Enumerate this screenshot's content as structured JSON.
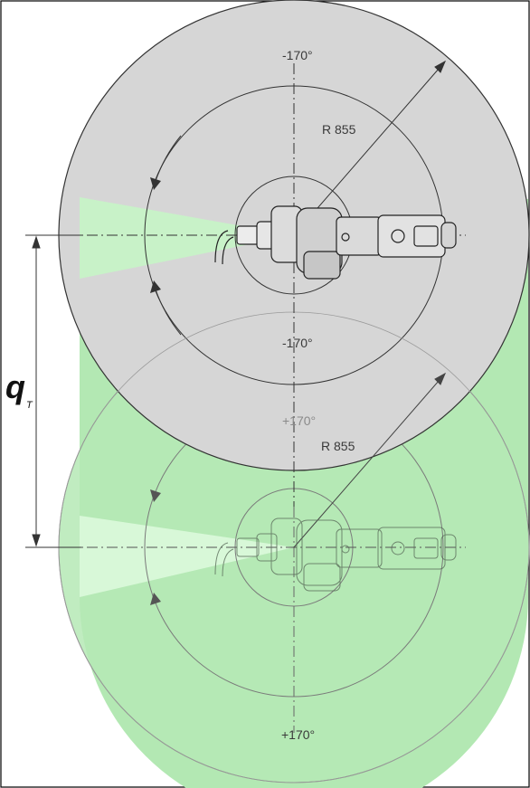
{
  "top_envelope": {
    "angle_top_label": "-170°",
    "radius_label": "R 855",
    "angle_bottom_label": "-170°"
  },
  "bottom_envelope": {
    "angle_top_label": "+170°",
    "radius_label": "R 855",
    "angle_bottom_label": "+170°"
  },
  "travel_dimension": {
    "symbol": "q",
    "subscript": "T"
  },
  "colors": {
    "grey_fill": "#d7d7d7",
    "green_fill": "#b8ebb8",
    "light_green_fill": "#ccf5cc",
    "line_color": "#333333"
  }
}
